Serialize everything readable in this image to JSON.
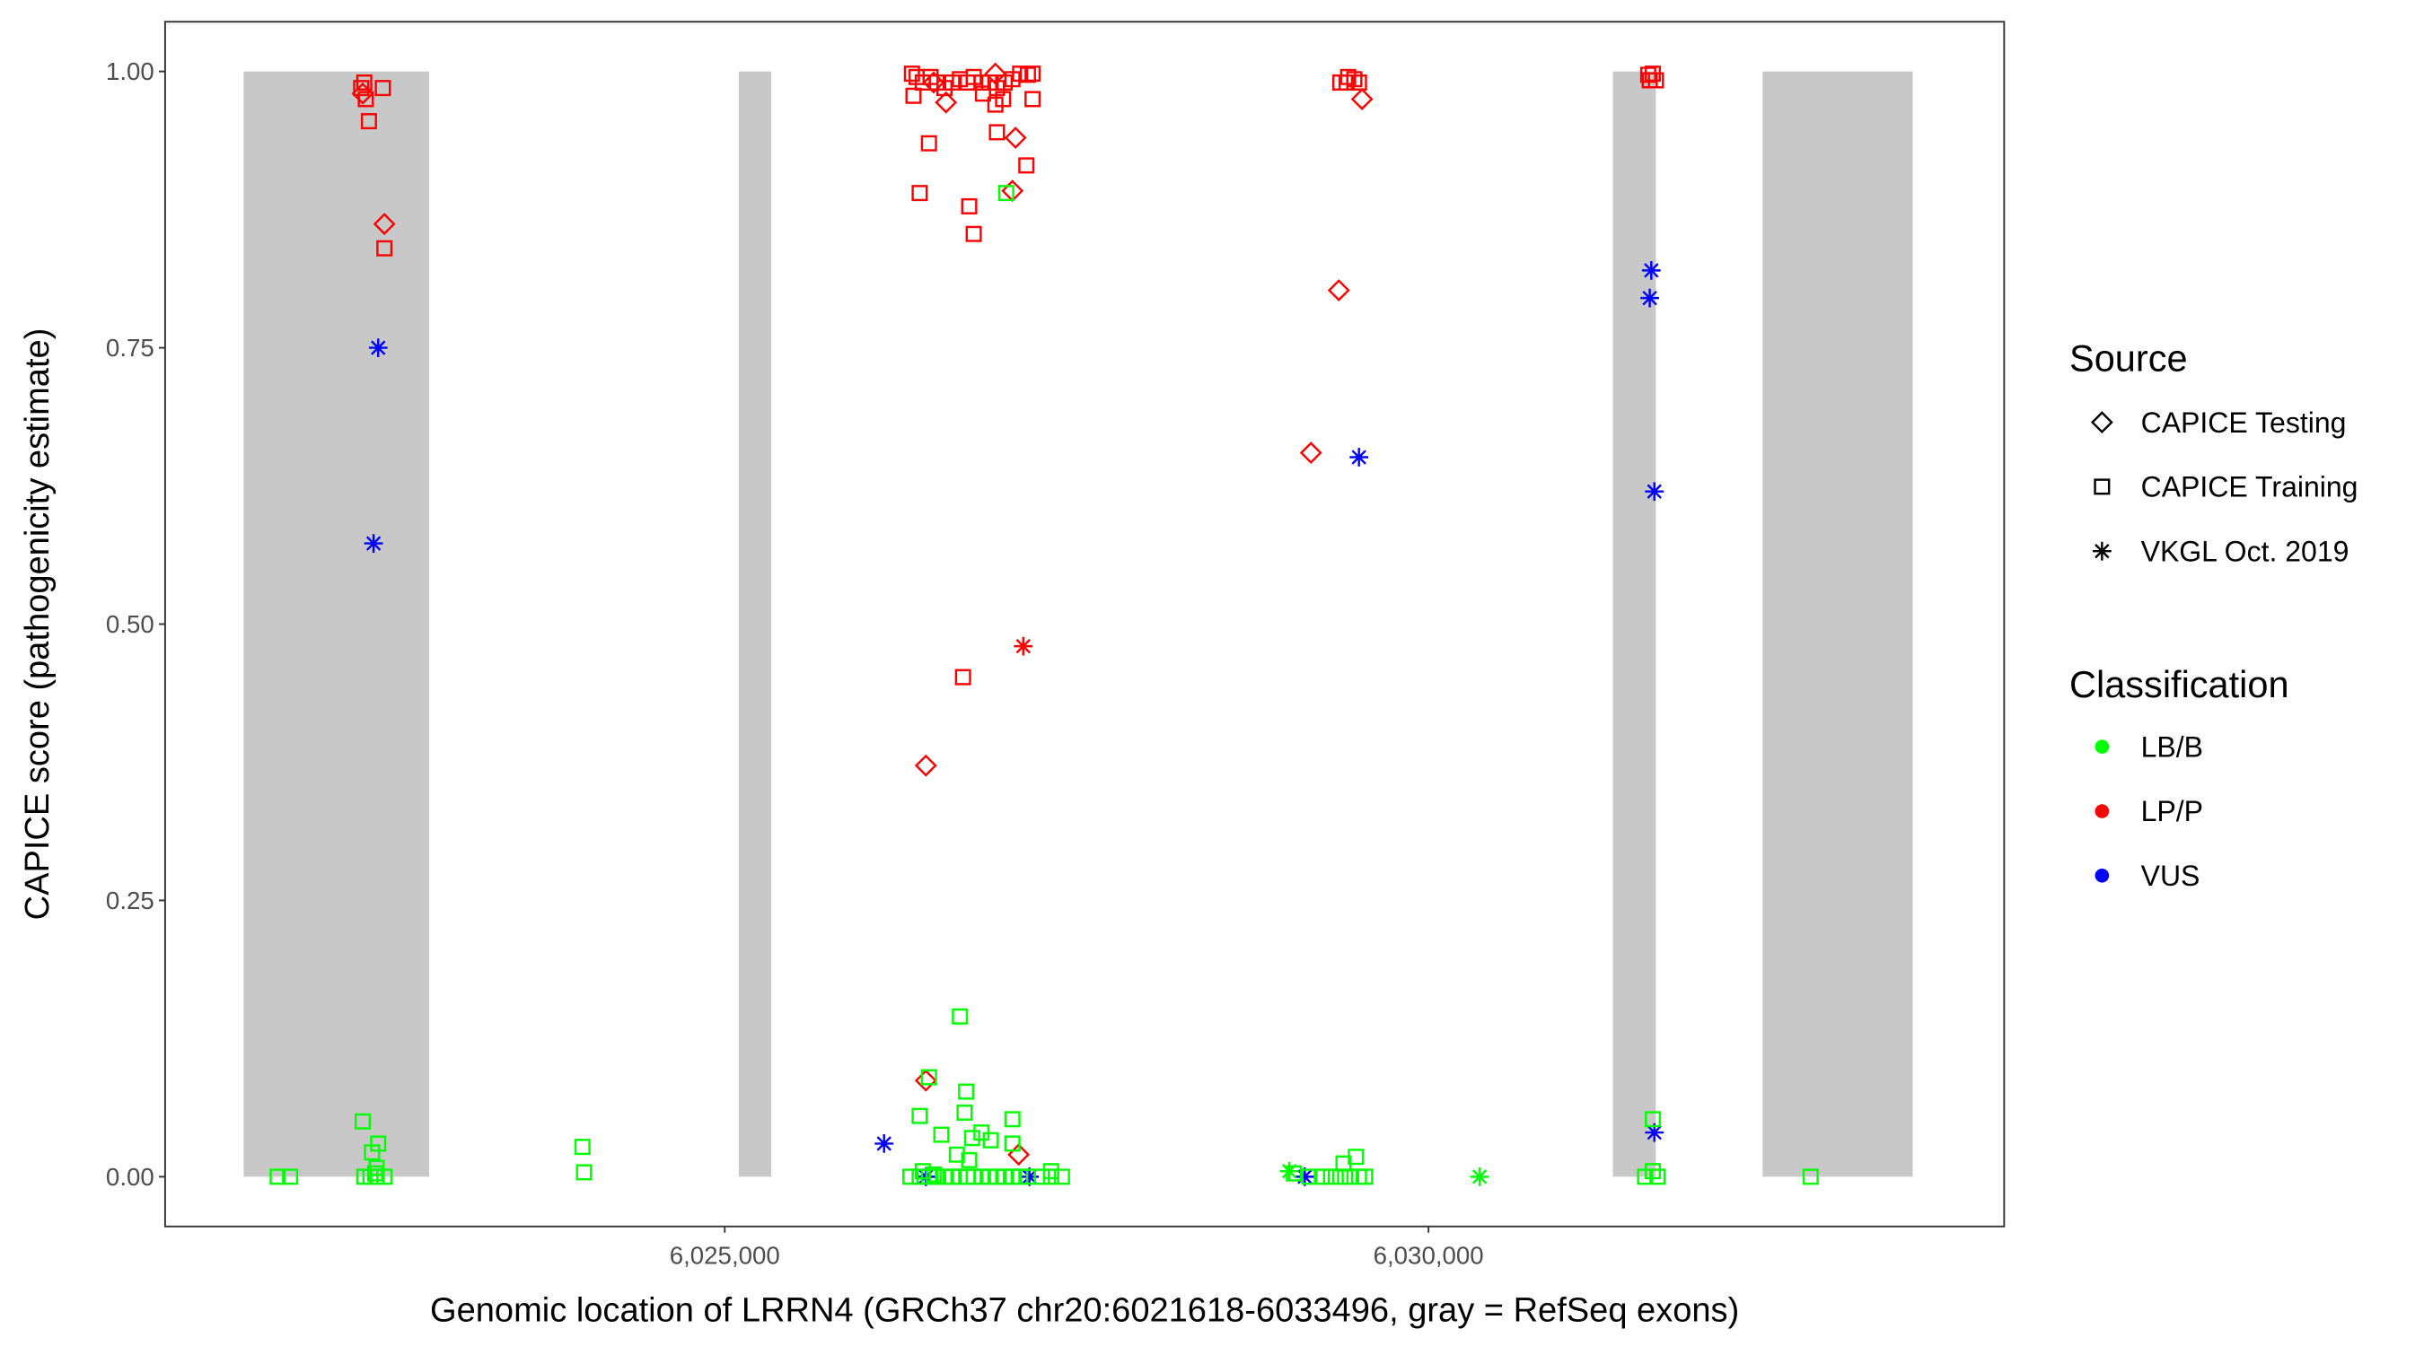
{
  "chart_data": {
    "type": "scatter",
    "xlabel": "Genomic location of LRRN4 (GRCh37 chr20:6021618-6033496, gray = RefSeq exons)",
    "ylabel": "CAPICE score (pathogenicity estimate)",
    "xlim": [
      6021024,
      6034090
    ],
    "ylim": [
      -0.045,
      1.045
    ],
    "x_ticks": [
      {
        "value": 6025000,
        "label": "6,025,000"
      },
      {
        "value": 6030000,
        "label": "6,030,000"
      }
    ],
    "y_ticks": [
      {
        "value": 0,
        "label": "0.00"
      },
      {
        "value": 0.25,
        "label": "0.25"
      },
      {
        "value": 0.5,
        "label": "0.50"
      },
      {
        "value": 0.75,
        "label": "0.75"
      },
      {
        "value": 1,
        "label": "1.00"
      }
    ],
    "grid": false,
    "exons": [
      [
        6021582,
        6022900
      ],
      [
        6025100,
        6025330
      ],
      [
        6031310,
        6031615
      ],
      [
        6032374,
        6033440
      ]
    ],
    "legend": {
      "placement": "right",
      "source": {
        "title": "Source",
        "items": [
          {
            "key": "testing",
            "label": "CAPICE Testing",
            "shape": "diamond"
          },
          {
            "key": "training",
            "label": "CAPICE Training",
            "shape": "square"
          },
          {
            "key": "vkgl",
            "label": "VKGL Oct. 2019",
            "shape": "asterisk"
          }
        ]
      },
      "classification": {
        "title": "Classification",
        "items": [
          {
            "key": "LB/B",
            "label": "LB/B",
            "color": "#00FF00"
          },
          {
            "key": "LP/P",
            "label": "LP/P",
            "color": "#FF0000"
          },
          {
            "key": "VUS",
            "label": "VUS",
            "color": "#0000FF"
          }
        ]
      }
    },
    "columns": [
      "position",
      "score",
      "source",
      "classification"
    ],
    "points": [
      [
        6022439,
        0.99,
        "training",
        "LP/P"
      ],
      [
        6022417,
        0.985,
        "training",
        "LP/P"
      ],
      [
        6022571,
        0.985,
        "training",
        "LP/P"
      ],
      [
        6022450,
        0.975,
        "training",
        "LP/P"
      ],
      [
        6022472,
        0.955,
        "training",
        "LP/P"
      ],
      [
        6022582,
        0.84,
        "training",
        "LP/P"
      ],
      [
        6022428,
        0.98,
        "testing",
        "LP/P"
      ],
      [
        6022582,
        0.862,
        "testing",
        "LP/P"
      ],
      [
        6022538,
        0.75,
        "vkgl",
        "VUS"
      ],
      [
        6022505,
        0.573,
        "vkgl",
        "VUS"
      ],
      [
        6022428,
        0.05,
        "training",
        "LB/B"
      ],
      [
        6022538,
        0.03,
        "training",
        "LB/B"
      ],
      [
        6022494,
        0.022,
        "training",
        "LB/B"
      ],
      [
        6022527,
        0.008,
        "training",
        "LB/B"
      ],
      [
        6022516,
        0.003,
        "training",
        "LB/B"
      ],
      [
        6022439,
        0,
        "training",
        "LB/B"
      ],
      [
        6022483,
        0,
        "training",
        "LB/B"
      ],
      [
        6022527,
        0,
        "training",
        "LB/B"
      ],
      [
        6022582,
        0,
        "training",
        "LB/B"
      ],
      [
        6021824,
        0,
        "training",
        "LB/B"
      ],
      [
        6021912,
        0,
        "training",
        "LB/B"
      ],
      [
        6023989,
        0.027,
        "training",
        "LB/B"
      ],
      [
        6024000,
        0.004,
        "training",
        "LB/B"
      ],
      [
        6026330,
        0.998,
        "training",
        "LP/P"
      ],
      [
        6026363,
        0.995,
        "training",
        "LP/P"
      ],
      [
        6026407,
        0.99,
        "training",
        "LP/P"
      ],
      [
        6026462,
        0.995,
        "training",
        "LP/P"
      ],
      [
        6026506,
        0.99,
        "training",
        "LP/P"
      ],
      [
        6026561,
        0.985,
        "training",
        "LP/P"
      ],
      [
        6026616,
        0.99,
        "training",
        "LP/P"
      ],
      [
        6026671,
        0.993,
        "training",
        "LP/P"
      ],
      [
        6026726,
        0.99,
        "training",
        "LP/P"
      ],
      [
        6026769,
        0.995,
        "training",
        "LP/P"
      ],
      [
        6026824,
        0.99,
        "training",
        "LP/P"
      ],
      [
        6026879,
        0.99,
        "training",
        "LP/P"
      ],
      [
        6026934,
        0.985,
        "training",
        "LP/P"
      ],
      [
        6026989,
        0.99,
        "training",
        "LP/P"
      ],
      [
        6027044,
        0.993,
        "training",
        "LP/P"
      ],
      [
        6027099,
        0.998,
        "training",
        "LP/P"
      ],
      [
        6027154,
        0.997,
        "training",
        "LP/P"
      ],
      [
        6027187,
        0.998,
        "training",
        "LP/P"
      ],
      [
        6026341,
        0.978,
        "training",
        "LP/P"
      ],
      [
        6026835,
        0.98,
        "training",
        "LP/P"
      ],
      [
        6026978,
        0.975,
        "training",
        "LP/P"
      ],
      [
        6027187,
        0.975,
        "training",
        "LP/P"
      ],
      [
        6026923,
        0.97,
        "training",
        "LP/P"
      ],
      [
        6026484,
        0.99,
        "testing",
        "LP/P"
      ],
      [
        6026572,
        0.972,
        "testing",
        "LP/P"
      ],
      [
        6026923,
        0.998,
        "testing",
        "LP/P"
      ],
      [
        6027066,
        0.94,
        "testing",
        "LP/P"
      ],
      [
        6027044,
        0.892,
        "testing",
        "LP/P"
      ],
      [
        6026451,
        0.935,
        "training",
        "LP/P"
      ],
      [
        6027143,
        0.915,
        "training",
        "LP/P"
      ],
      [
        6026934,
        0.945,
        "training",
        "LP/P"
      ],
      [
        6026385,
        0.89,
        "training",
        "LP/P"
      ],
      [
        6026737,
        0.878,
        "training",
        "LP/P"
      ],
      [
        6026769,
        0.853,
        "training",
        "LP/P"
      ],
      [
        6026693,
        0.452,
        "training",
        "LP/P"
      ],
      [
        6027121,
        0.48,
        "vkgl",
        "LP/P"
      ],
      [
        6026429,
        0.372,
        "testing",
        "LP/P"
      ],
      [
        6026429,
        0.087,
        "testing",
        "LP/P"
      ],
      [
        6027088,
        0.02,
        "testing",
        "LP/P"
      ],
      [
        6027000,
        0.89,
        "training",
        "LB/B"
      ],
      [
        6026132,
        0.03,
        "vkgl",
        "VUS"
      ],
      [
        6026429,
        0,
        "vkgl",
        "VUS"
      ],
      [
        6027165,
        0,
        "vkgl",
        "VUS"
      ],
      [
        6026671,
        0.145,
        "training",
        "LB/B"
      ],
      [
        6026451,
        0.09,
        "training",
        "LB/B"
      ],
      [
        6026715,
        0.077,
        "training",
        "LB/B"
      ],
      [
        6026385,
        0.055,
        "training",
        "LB/B"
      ],
      [
        6026704,
        0.058,
        "training",
        "LB/B"
      ],
      [
        6027044,
        0.052,
        "training",
        "LB/B"
      ],
      [
        6026539,
        0.038,
        "training",
        "LB/B"
      ],
      [
        6026824,
        0.04,
        "training",
        "LB/B"
      ],
      [
        6026758,
        0.035,
        "training",
        "LB/B"
      ],
      [
        6026890,
        0.033,
        "training",
        "LB/B"
      ],
      [
        6027044,
        0.03,
        "training",
        "LB/B"
      ],
      [
        6026649,
        0.02,
        "training",
        "LB/B"
      ],
      [
        6026737,
        0.015,
        "training",
        "LB/B"
      ],
      [
        6026407,
        0.005,
        "training",
        "LB/B"
      ],
      [
        6027319,
        0.005,
        "training",
        "LB/B"
      ],
      [
        6026484,
        0.002,
        "training",
        "LB/B"
      ],
      [
        6026319,
        0,
        "training",
        "LB/B"
      ],
      [
        6026385,
        0,
        "training",
        "LB/B"
      ],
      [
        6026451,
        0,
        "training",
        "LB/B"
      ],
      [
        6026506,
        0,
        "training",
        "LB/B"
      ],
      [
        6026561,
        0,
        "training",
        "LB/B"
      ],
      [
        6026616,
        0,
        "training",
        "LB/B"
      ],
      [
        6026671,
        0,
        "training",
        "LB/B"
      ],
      [
        6026726,
        0,
        "training",
        "LB/B"
      ],
      [
        6026769,
        0,
        "training",
        "LB/B"
      ],
      [
        6026824,
        0,
        "training",
        "LB/B"
      ],
      [
        6026879,
        0,
        "training",
        "LB/B"
      ],
      [
        6026934,
        0,
        "training",
        "LB/B"
      ],
      [
        6026989,
        0,
        "training",
        "LB/B"
      ],
      [
        6027044,
        0,
        "training",
        "LB/B"
      ],
      [
        6027099,
        0,
        "training",
        "LB/B"
      ],
      [
        6027154,
        0,
        "training",
        "LB/B"
      ],
      [
        6027253,
        0,
        "training",
        "LB/B"
      ],
      [
        6027319,
        0,
        "training",
        "LB/B"
      ],
      [
        6027396,
        0,
        "training",
        "LB/B"
      ],
      [
        6029374,
        0.99,
        "training",
        "LP/P"
      ],
      [
        6029429,
        0.995,
        "training",
        "LP/P"
      ],
      [
        6029473,
        0.993,
        "training",
        "LP/P"
      ],
      [
        6029506,
        0.99,
        "training",
        "LP/P"
      ],
      [
        6029418,
        0.99,
        "training",
        "LP/P"
      ],
      [
        6029528,
        0.975,
        "testing",
        "LP/P"
      ],
      [
        6029363,
        0.802,
        "testing",
        "LP/P"
      ],
      [
        6029165,
        0.655,
        "testing",
        "LP/P"
      ],
      [
        6029506,
        0.651,
        "vkgl",
        "VUS"
      ],
      [
        6029121,
        0,
        "vkgl",
        "VUS"
      ],
      [
        6029011,
        0.005,
        "vkgl",
        "LB/B"
      ],
      [
        6030363,
        0,
        "vkgl",
        "LB/B"
      ],
      [
        6029484,
        0.018,
        "training",
        "LB/B"
      ],
      [
        6029396,
        0.012,
        "training",
        "LB/B"
      ],
      [
        6029044,
        0.003,
        "training",
        "LB/B"
      ],
      [
        6029154,
        0,
        "training",
        "LB/B"
      ],
      [
        6029242,
        0,
        "training",
        "LB/B"
      ],
      [
        6029308,
        0,
        "training",
        "LB/B"
      ],
      [
        6029374,
        0,
        "training",
        "LB/B"
      ],
      [
        6029440,
        0,
        "training",
        "LB/B"
      ],
      [
        6029506,
        0,
        "training",
        "LB/B"
      ],
      [
        6029550,
        0,
        "training",
        "LB/B"
      ],
      [
        6031561,
        0.997,
        "training",
        "LP/P"
      ],
      [
        6031594,
        0.998,
        "training",
        "LP/P"
      ],
      [
        6031572,
        0.992,
        "training",
        "LP/P"
      ],
      [
        6031616,
        0.992,
        "training",
        "LP/P"
      ],
      [
        6031583,
        0.82,
        "vkgl",
        "VUS"
      ],
      [
        6031572,
        0.795,
        "vkgl",
        "VUS"
      ],
      [
        6031605,
        0.62,
        "vkgl",
        "VUS"
      ],
      [
        6031605,
        0.04,
        "vkgl",
        "VUS"
      ],
      [
        6031594,
        0.052,
        "training",
        "LB/B"
      ],
      [
        6031539,
        0,
        "training",
        "LB/B"
      ],
      [
        6031594,
        0.005,
        "training",
        "LB/B"
      ],
      [
        6031627,
        0,
        "training",
        "LB/B"
      ],
      [
        6032715,
        0,
        "training",
        "LB/B"
      ]
    ]
  }
}
